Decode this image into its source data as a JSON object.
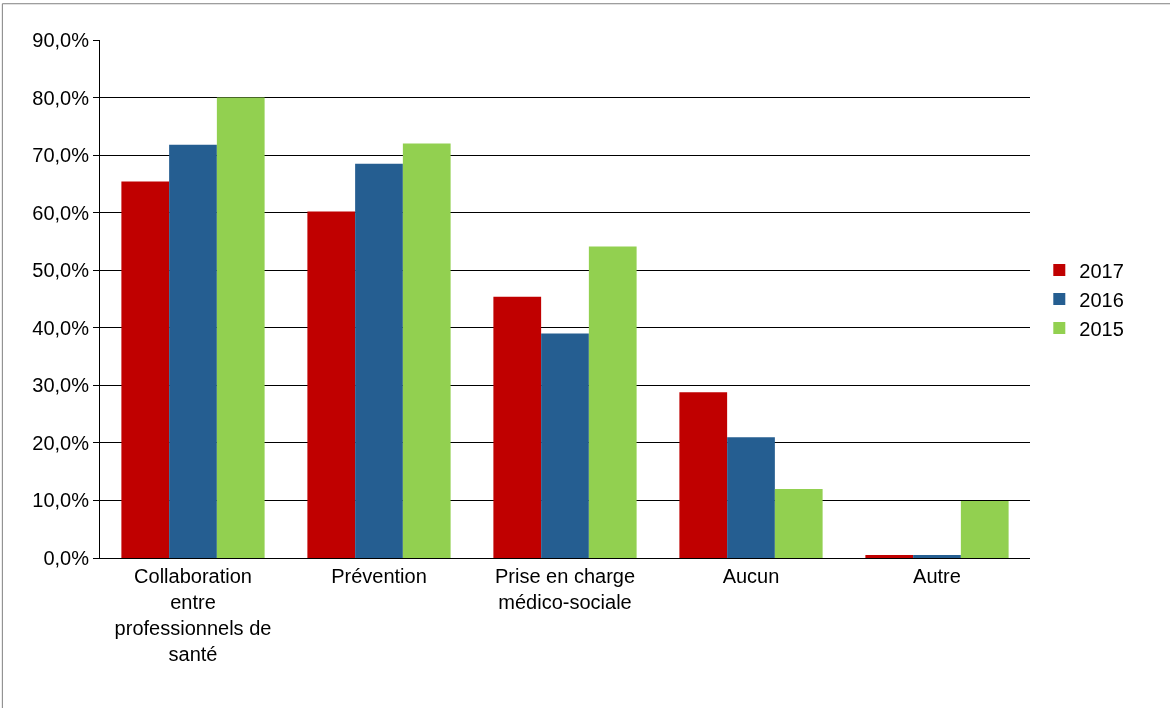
{
  "chart_data": {
    "type": "bar",
    "categories": [
      "Collaboration entre professionnels de santé",
      "Prévention",
      "Prise en charge médico-sociale",
      "Aucun",
      "Autre"
    ],
    "series": [
      {
        "name": "2017",
        "color": "#c00000",
        "values": [
          65.4,
          60.2,
          45.4,
          28.8,
          0.5
        ]
      },
      {
        "name": "2016",
        "color": "#255e91",
        "values": [
          71.8,
          68.5,
          39.0,
          21.0,
          0.5
        ]
      },
      {
        "name": "2015",
        "color": "#92d050",
        "values": [
          80.0,
          72.0,
          54.1,
          12.0,
          9.9
        ]
      }
    ],
    "ylim": [
      0,
      90
    ],
    "yticks": [
      {
        "value": 0,
        "label": "0,0%"
      },
      {
        "value": 10,
        "label": "10,0%"
      },
      {
        "value": 20,
        "label": "20,0%"
      },
      {
        "value": 30,
        "label": "30,0%"
      },
      {
        "value": 40,
        "label": "40,0%"
      },
      {
        "value": 50,
        "label": "50,0%"
      },
      {
        "value": 60,
        "label": "60,0%"
      },
      {
        "value": 70,
        "label": "70,0%"
      },
      {
        "value": 80,
        "label": "80,0%"
      },
      {
        "value": 90,
        "label": "90,0%"
      }
    ],
    "grid": "y",
    "legend": "right"
  }
}
